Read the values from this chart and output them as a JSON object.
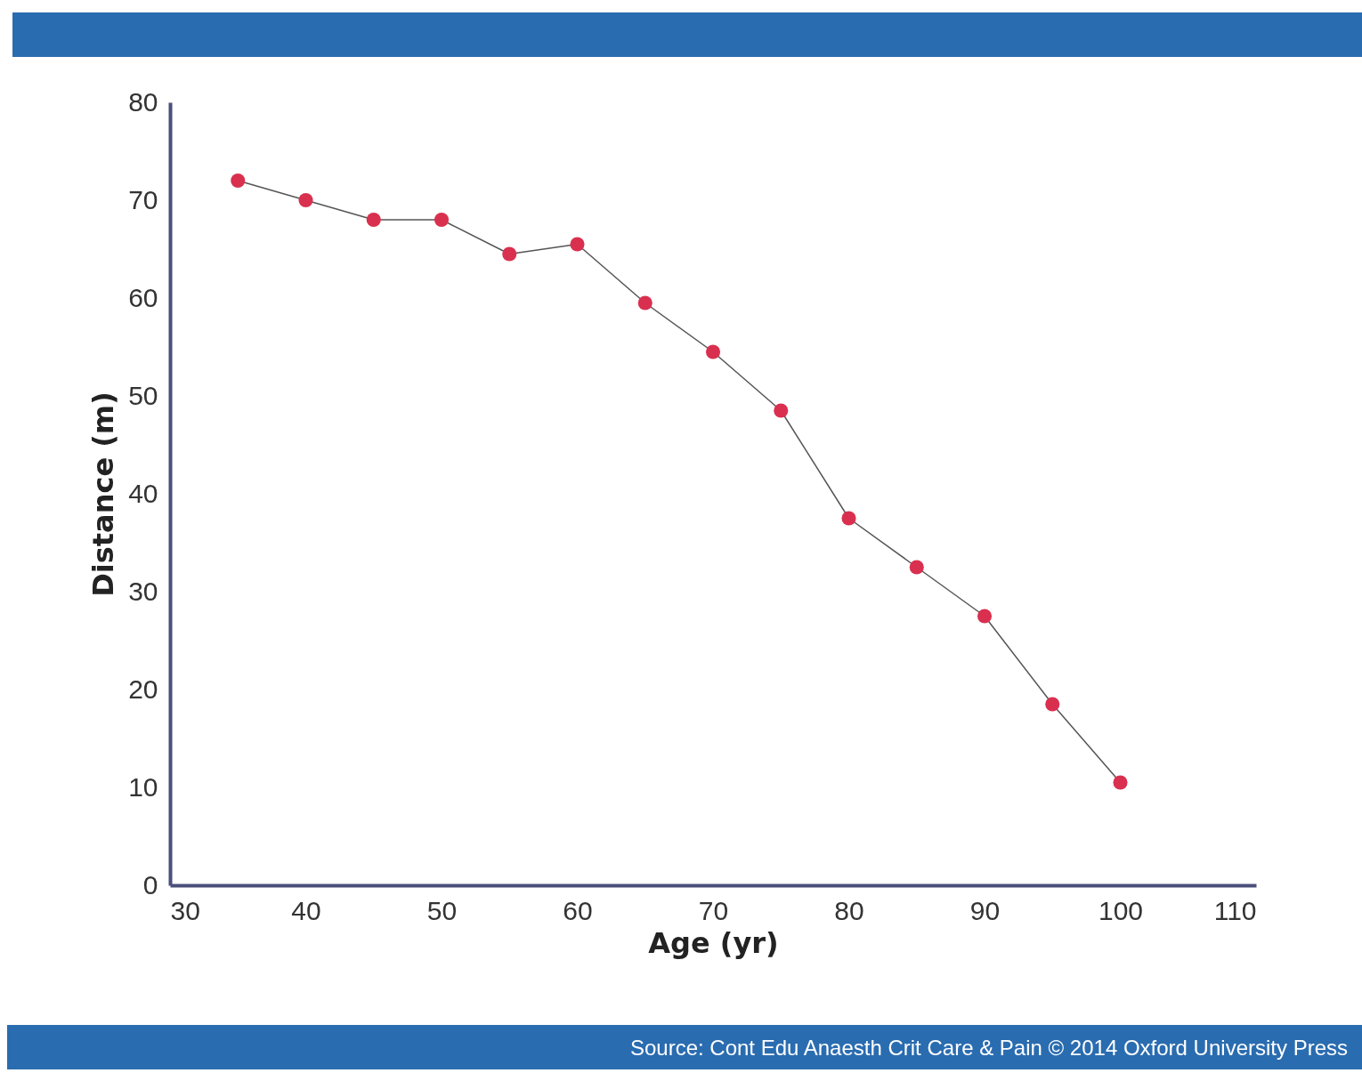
{
  "chart_data": {
    "type": "line",
    "xlabel": "Age (yr)",
    "ylabel": "Distance (m)",
    "x": [
      35,
      40,
      45,
      50,
      55,
      60,
      65,
      70,
      75,
      80,
      85,
      90,
      95,
      100
    ],
    "series": [
      {
        "color": "#d9304f",
        "values": [
          72,
          70,
          68,
          68,
          64.5,
          65.5,
          59.5,
          54.5,
          48.5,
          37.5,
          32.5,
          27.5,
          18.5,
          10.5
        ]
      }
    ],
    "xlim": [
      30,
      110
    ],
    "xticks": [
      30,
      40,
      50,
      60,
      70,
      80,
      90,
      100,
      110
    ],
    "ylim": [
      0,
      80
    ],
    "yticks": [
      0,
      10,
      20,
      30,
      40,
      50,
      60,
      70,
      80
    ],
    "marker": "circle",
    "line_style": "solid",
    "grid": false,
    "annotations": [
      "Source: Cont Edu Anaesth Crit Care & Pain © 2014 Oxford University Press"
    ]
  }
}
